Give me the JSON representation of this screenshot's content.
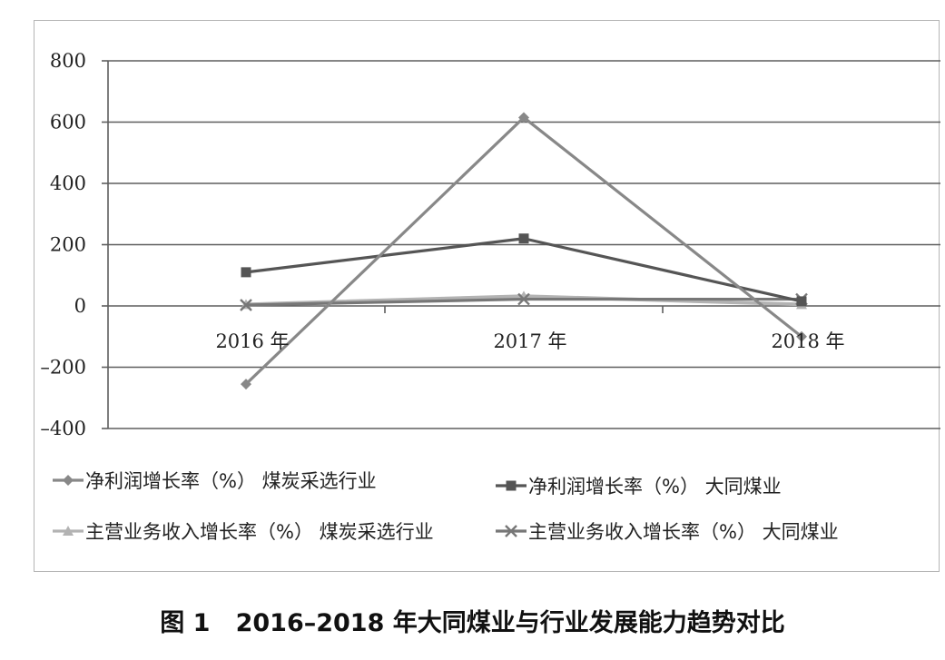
{
  "caption": "图 1   2016–2018 年大同煤业与行业发展能力趋势对比",
  "chart_data": {
    "type": "line",
    "title": "",
    "xlabel": "",
    "ylabel": "",
    "categories": [
      "2016 年",
      "2017 年",
      "2018 年"
    ],
    "yticks": [
      "800",
      "600",
      "400",
      "200",
      "0",
      "–200",
      "–400"
    ],
    "ytick_values": [
      800,
      600,
      400,
      200,
      0,
      -200,
      -400
    ],
    "ylim": [
      -400,
      800
    ],
    "grid": true,
    "legend_position": "bottom",
    "series": [
      {
        "name": "净利润增长率（%）   煤炭采选行业",
        "values": [
          -255,
          615,
          -100
        ],
        "color": "#888888",
        "marker": "diamond"
      },
      {
        "name": "净利润增长率（%）   大同煤业",
        "values": [
          110,
          220,
          15
        ],
        "color": "#555555",
        "marker": "square"
      },
      {
        "name": "主营业务收入增长率（%）   煤炭采选行业",
        "values": [
          5,
          32,
          5
        ],
        "color": "#b3b3b3",
        "marker": "triangle"
      },
      {
        "name": "主营业务收入增长率（%）   大同煤业",
        "values": [
          3,
          22,
          22
        ],
        "color": "#777777",
        "marker": "x"
      }
    ]
  }
}
